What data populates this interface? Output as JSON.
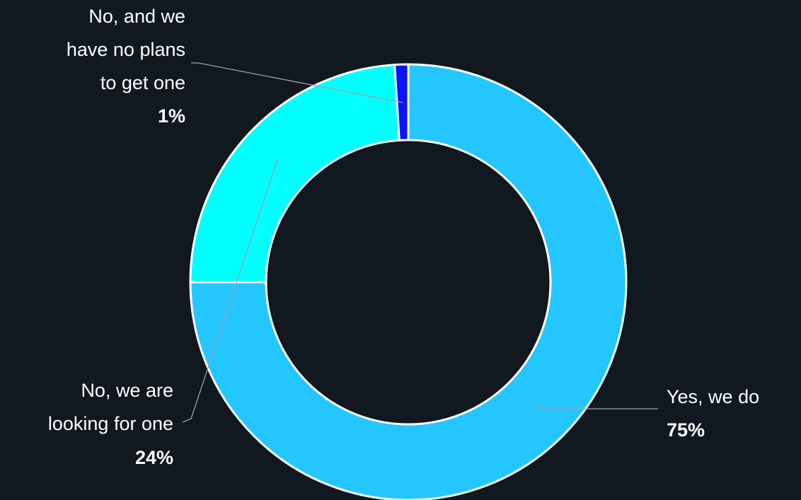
{
  "chart_data": {
    "type": "pie",
    "title": "",
    "slices": [
      {
        "label_lines": [
          "Yes, we do"
        ],
        "value": 75,
        "value_label": "75%",
        "color": "#24c6ff"
      },
      {
        "label_lines": [
          "No, we are",
          "looking for one"
        ],
        "value": 24,
        "value_label": "24%",
        "color": "#00ffff"
      },
      {
        "label_lines": [
          "No, and we",
          "have no plans",
          "to get one"
        ],
        "value": 1,
        "value_label": "1%",
        "color": "#0a14ff"
      }
    ],
    "donut": true,
    "legend": "none",
    "colors": {
      "background": "#121820",
      "slice_border": "#ffffff",
      "leader_line": "#9aa3ab",
      "text": "#ffffff"
    }
  }
}
